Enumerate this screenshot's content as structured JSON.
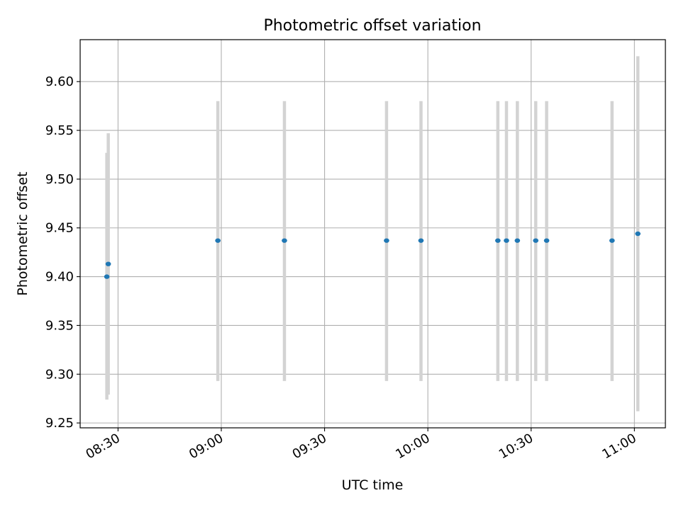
{
  "chart_data": {
    "type": "scatter",
    "title": "Photometric offset variation",
    "xlabel": "UTC time",
    "ylabel": "Photometric offset",
    "grid": true,
    "xlim": [
      "08:19",
      "11:09"
    ],
    "ylim": [
      9.245,
      9.643
    ],
    "x_ticks": [
      "08:30",
      "09:00",
      "09:30",
      "10:00",
      "10:30",
      "11:00"
    ],
    "y_ticks": [
      "9.25",
      "9.30",
      "9.35",
      "9.40",
      "9.45",
      "9.50",
      "9.55",
      "9.60"
    ],
    "errorbar_color": "#d3d3d3",
    "point_color": "#1f77b4",
    "series": [
      {
        "points": [
          {
            "x": "08:26:45",
            "y": 9.4,
            "ylow": 9.274,
            "yhigh": 9.527
          },
          {
            "x": "08:27:10",
            "y": 9.413,
            "ylow": 9.279,
            "yhigh": 9.547
          },
          {
            "x": "08:59:00",
            "y": 9.437,
            "ylow": 9.293,
            "yhigh": 9.58
          },
          {
            "x": "09:18:20",
            "y": 9.437,
            "ylow": 9.293,
            "yhigh": 9.58
          },
          {
            "x": "09:48:00",
            "y": 9.437,
            "ylow": 9.293,
            "yhigh": 9.58
          },
          {
            "x": "09:58:00",
            "y": 9.437,
            "ylow": 9.293,
            "yhigh": 9.58
          },
          {
            "x": "10:20:20",
            "y": 9.437,
            "ylow": 9.293,
            "yhigh": 9.58
          },
          {
            "x": "10:22:50",
            "y": 9.437,
            "ylow": 9.293,
            "yhigh": 9.58
          },
          {
            "x": "10:26:00",
            "y": 9.437,
            "ylow": 9.293,
            "yhigh": 9.58
          },
          {
            "x": "10:31:20",
            "y": 9.437,
            "ylow": 9.293,
            "yhigh": 9.58
          },
          {
            "x": "10:34:30",
            "y": 9.437,
            "ylow": 9.293,
            "yhigh": 9.58
          },
          {
            "x": "10:53:30",
            "y": 9.437,
            "ylow": 9.293,
            "yhigh": 9.58
          },
          {
            "x": "11:01:00",
            "y": 9.444,
            "ylow": 9.262,
            "yhigh": 9.626
          }
        ]
      }
    ]
  }
}
